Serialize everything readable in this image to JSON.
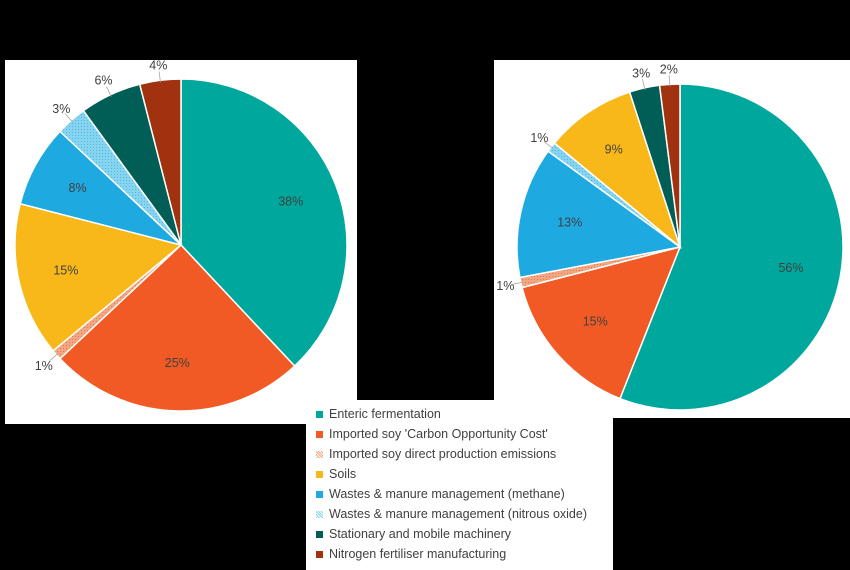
{
  "colors": {
    "enteric": "#00A79D",
    "imported_soy_coc": "#F15A24",
    "imported_soy_direct": "#F4A582",
    "soils": "#F9B81A",
    "wastes_methane": "#1FA9E1",
    "wastes_n2o": "#87D4F1",
    "machinery": "#005E56",
    "fertiliser": "#A0320F"
  },
  "legend": {
    "items": [
      {
        "label": "Enteric fermentation",
        "color": "#00A79D",
        "pattern": false
      },
      {
        "label": "Imported soy 'Carbon Opportunity Cost'",
        "color": "#F15A24",
        "pattern": false
      },
      {
        "label": "Imported soy direct production emissions",
        "color": "#F4A582",
        "pattern": true
      },
      {
        "label": "Soils",
        "color": "#F9B81A",
        "pattern": false
      },
      {
        "label": "Wastes & manure management (methane)",
        "color": "#1FA9E1",
        "pattern": false
      },
      {
        "label": "Wastes & manure management (nitrous oxide)",
        "color": "#87D4F1",
        "pattern": true
      },
      {
        "label": "Stationary and mobile machinery",
        "color": "#005E56",
        "pattern": false
      },
      {
        "label": "Nitrogen fertiliser manufacturing",
        "color": "#A0320F",
        "pattern": false
      }
    ]
  },
  "chart_data": [
    {
      "type": "pie",
      "title": "",
      "legend": "bottom-center",
      "categories": [
        "Enteric fermentation",
        "Imported soy 'Carbon Opportunity Cost'",
        "Imported soy direct production emissions",
        "Soils",
        "Wastes & manure management (methane)",
        "Wastes & manure management (nitrous oxide)",
        "Stationary and mobile machinery",
        "Nitrogen fertiliser manufacturing"
      ],
      "values": [
        38,
        25,
        1,
        15,
        8,
        3,
        6,
        4
      ],
      "labels": [
        "38%",
        "25%",
        "1%",
        "15%",
        "8%",
        "3%",
        "6%",
        "4%"
      ]
    },
    {
      "type": "pie",
      "title": "",
      "legend": "bottom-center",
      "categories": [
        "Enteric fermentation",
        "Imported soy 'Carbon Opportunity Cost'",
        "Imported soy direct production emissions",
        "Wastes & manure management (methane)",
        "Wastes & manure management (nitrous oxide)",
        "Soils",
        "Stationary and mobile machinery",
        "Nitrogen fertiliser manufacturing"
      ],
      "values": [
        56,
        15,
        1,
        13,
        1,
        9,
        3,
        2
      ],
      "labels": [
        "56%",
        "15%",
        "1%",
        "13%",
        "1%",
        "9%",
        "3%",
        "2%"
      ]
    }
  ]
}
